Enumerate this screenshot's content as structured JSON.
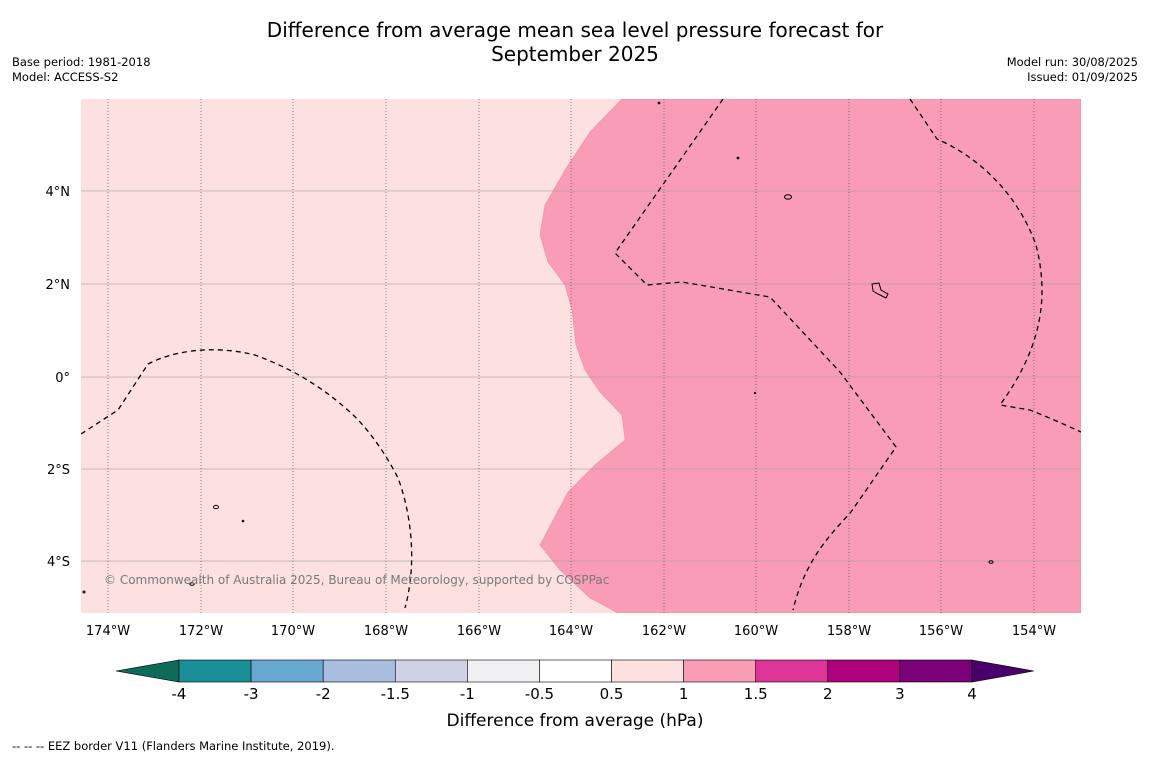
{
  "title": {
    "line1": "Difference from average mean sea level pressure forecast for",
    "line2": "September 2025"
  },
  "meta_left": {
    "base_period": "Base period: 1981-2018",
    "model": "Model: ACCESS-S2"
  },
  "meta_right": {
    "model_run": "Model run: 30/08/2025",
    "issued": "Issued: 01/09/2025"
  },
  "map": {
    "lat_labels": [
      "4°N",
      "2°N",
      "0°",
      "2°S",
      "4°S"
    ],
    "lon_labels": [
      "174°W",
      "172°W",
      "170°W",
      "168°W",
      "166°W",
      "164°W",
      "162°W",
      "160°W",
      "158°W",
      "156°W",
      "154°W"
    ],
    "copyright": "© Commonwealth of Australia 2025, Bureau of Meteorology, supported by COSPPac",
    "colors": {
      "band_0_5_to_1": "#fde0e0",
      "band_1_to_1_5": "#f99db6",
      "gridline": "#999999",
      "eez_border": "#000000"
    }
  },
  "colorbar": {
    "label": "Difference from average (hPa)",
    "tick_labels": [
      "-4",
      "-3",
      "-2",
      "-1.5",
      "-1",
      "-0.5",
      "0.5",
      "1",
      "1.5",
      "2",
      "3",
      "4"
    ],
    "colors": [
      "#0e6b5a",
      "#1b8f98",
      "#67a9cf",
      "#a8bde0",
      "#d0d1e6",
      "#f0f0f3",
      "#ffffff",
      "#fde0e0",
      "#f99db6",
      "#dd3497",
      "#ae017e",
      "#7a0177",
      "#49006a"
    ]
  },
  "footnote": "-- -- -- EEZ border V11 (Flanders Marine Institute, 2019)."
}
